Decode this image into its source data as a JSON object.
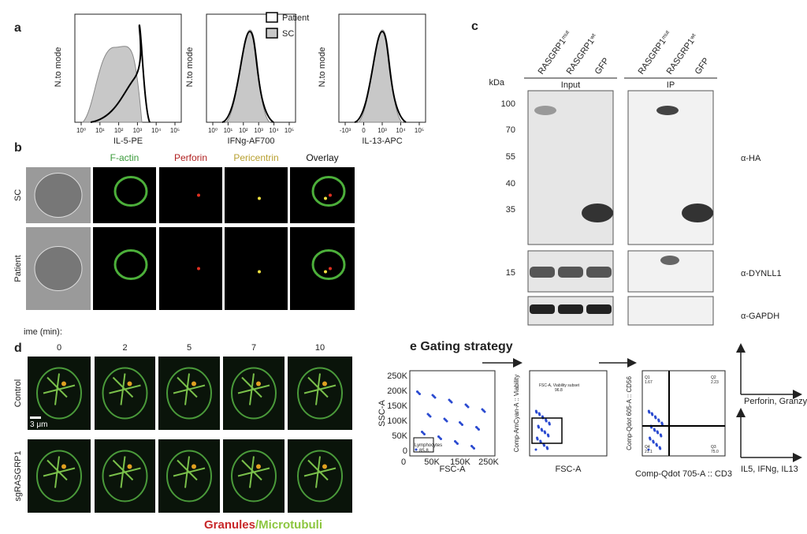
{
  "panel_a": {
    "label": "a",
    "legend": [
      "Patient",
      "SC"
    ],
    "plots": [
      {
        "y_label": "N.to mode",
        "x_label": "IL-5-PE",
        "x_ticks": [
          "10⁰",
          "10¹",
          "10²",
          "10³",
          "10⁴",
          "10⁵"
        ]
      },
      {
        "y_label": "N.to mode",
        "x_label": "IFNg-AF700",
        "x_ticks": [
          "10⁰",
          "10¹",
          "10²",
          "10³",
          "10⁴",
          "10⁵"
        ]
      },
      {
        "y_label": "N.to mode",
        "x_label": "IL-13-APC",
        "x_ticks": [
          "-10³",
          "0",
          "10³",
          "10⁴",
          "10⁵"
        ]
      }
    ]
  },
  "panel_b": {
    "label": "b",
    "columns": [
      "F-actin",
      "Perforin",
      "Pericentrin",
      "Overlay"
    ],
    "rows": [
      "SC",
      "Patient"
    ]
  },
  "panel_c": {
    "label": "c",
    "unit": "kDa",
    "groups": [
      {
        "name": "Input",
        "lanes": [
          {
            "gene": "RASGRP1",
            "allele": "mut"
          },
          {
            "gene": "RASGRP1",
            "allele": "wt"
          },
          {
            "gene": "GFP"
          }
        ]
      },
      {
        "name": "IP",
        "lanes": [
          {
            "gene": "RASGRP1",
            "allele": "mut"
          },
          {
            "gene": "RASGRP1",
            "allele": "wt"
          },
          {
            "gene": "GFP"
          }
        ]
      }
    ],
    "markers": [
      "100",
      "70",
      "55",
      "40",
      "35",
      "15"
    ],
    "antibodies": [
      "α-HA",
      "α-DYNLL1",
      "α-GAPDH"
    ]
  },
  "panel_d": {
    "label": "d",
    "time_label": "ime (min):",
    "times": [
      "0",
      "2",
      "5",
      "7",
      "10"
    ],
    "rows": [
      "Control",
      "sgRASGRP1"
    ],
    "scale_bar": "3 μm",
    "caption": [
      "Granules",
      "/Microtubuli"
    ]
  },
  "panel_e": {
    "title": "e Gating strategy",
    "plots": [
      {
        "y_label": "SSC-A",
        "x_label": "FSC-A",
        "y_ticks": [
          "250K",
          "200K",
          "150K",
          "100K",
          "50K",
          "0"
        ],
        "x_ticks": [
          "0",
          "50K",
          "150K",
          "250K"
        ],
        "gate": "Lymphocytes",
        "gate_value": "85.8"
      },
      {
        "y_label": "Comp-AmCyan-A :: Viability",
        "x_label": "FSC-A",
        "gate": "FSC-A, Viability subset",
        "gate_value": "96.8"
      },
      {
        "y_label": "Comp-Qdot 605-A :: CD56",
        "x_label": "Comp-Qdot 705-A :: CD3",
        "quadrants": [
          {
            "name": "Q1",
            "value": "1.67"
          },
          {
            "name": "Q2",
            "value": "2.23"
          },
          {
            "name": "Q4",
            "value": "21.1"
          },
          {
            "name": "Q3",
            "value": "75.0"
          }
        ]
      }
    ],
    "readouts": [
      "Perforin, Granzyme",
      "IL5, IFNg, IL13"
    ]
  }
}
